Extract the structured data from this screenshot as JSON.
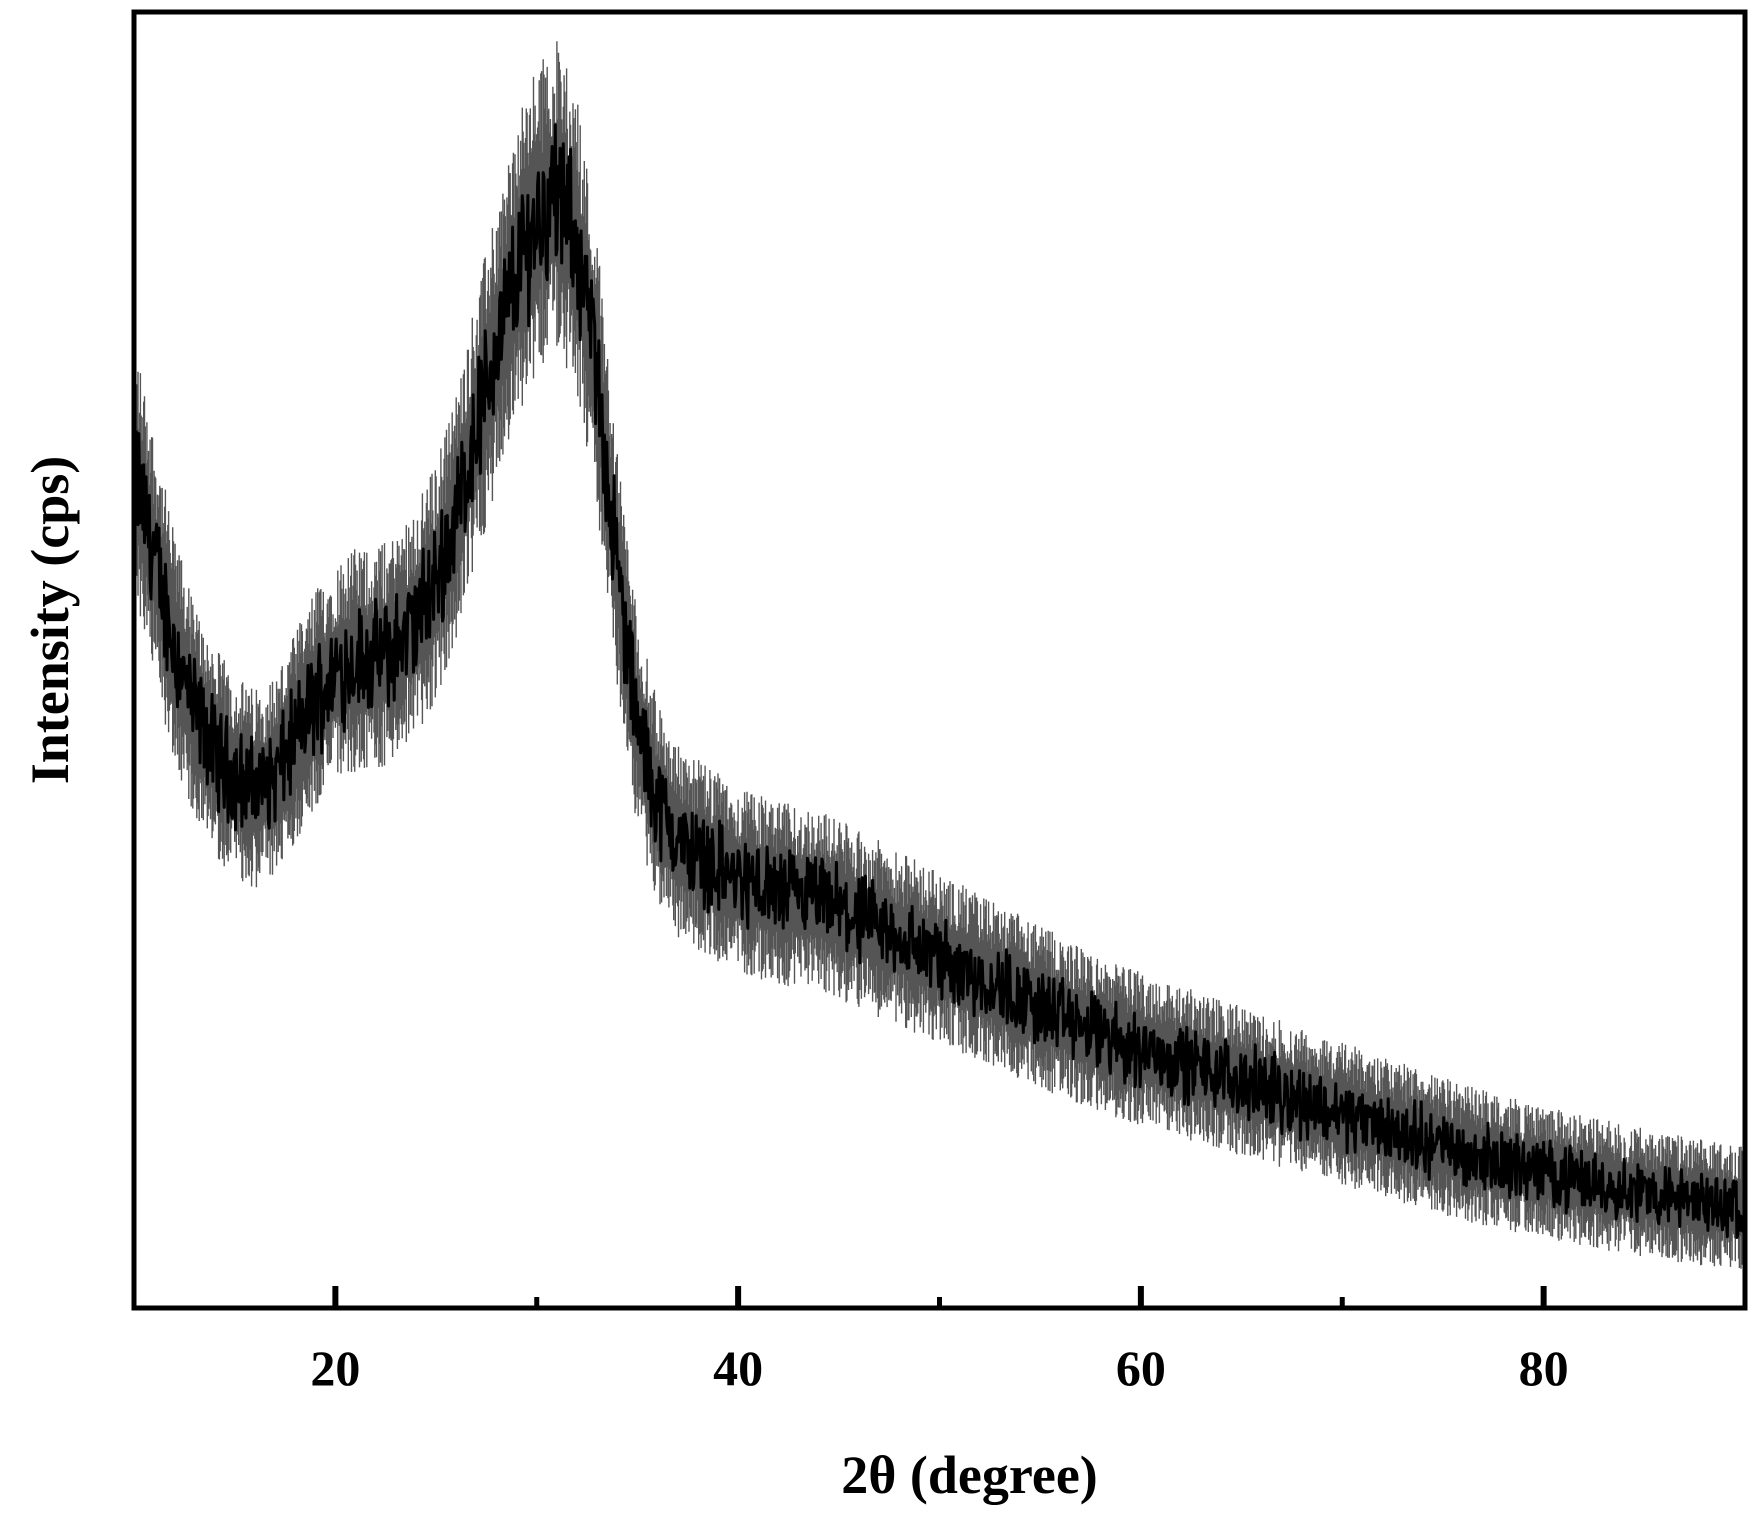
{
  "chart_data": {
    "type": "line",
    "xlabel": "2θ (degree)",
    "ylabel": "Intensity (cps)",
    "xlim": [
      10,
      90
    ],
    "ylim": [
      0,
      100
    ],
    "x_ticks": [
      20,
      40,
      60,
      80
    ],
    "x_minor_ticks": [
      30,
      50,
      70
    ],
    "x_tick_labels": [
      "20",
      "40",
      "60",
      "80"
    ],
    "y_tick_labels": [],
    "grid": false,
    "legend": "none",
    "line_color": "#000000",
    "noise_band": "#555555",
    "series": [
      {
        "x": [
          10,
          11,
          12,
          13,
          14,
          15,
          16,
          17,
          18,
          19,
          20,
          21,
          22,
          23,
          24,
          25,
          26,
          27,
          28,
          29,
          30,
          31,
          32,
          33,
          34,
          35,
          36,
          37,
          38,
          40,
          42,
          44,
          46,
          48,
          50,
          52,
          54,
          56,
          58,
          60,
          62,
          64,
          66,
          68,
          70,
          72,
          74,
          76,
          78,
          80,
          82,
          84,
          86,
          88,
          90
        ],
        "y": [
          65,
          58,
          51,
          46,
          43,
          41,
          40,
          41,
          44,
          47,
          49,
          50,
          50,
          51,
          53,
          56,
          61,
          68,
          74,
          80,
          84,
          86,
          82,
          72,
          57,
          45,
          39,
          36,
          35,
          33,
          32,
          31.5,
          30,
          28.5,
          27,
          25.5,
          24,
          22.5,
          21,
          20,
          19,
          18,
          17,
          16,
          15,
          14,
          13,
          12,
          11.2,
          10.5,
          9.8,
          9.2,
          8.6,
          8.1,
          7.7
        ]
      }
    ]
  }
}
